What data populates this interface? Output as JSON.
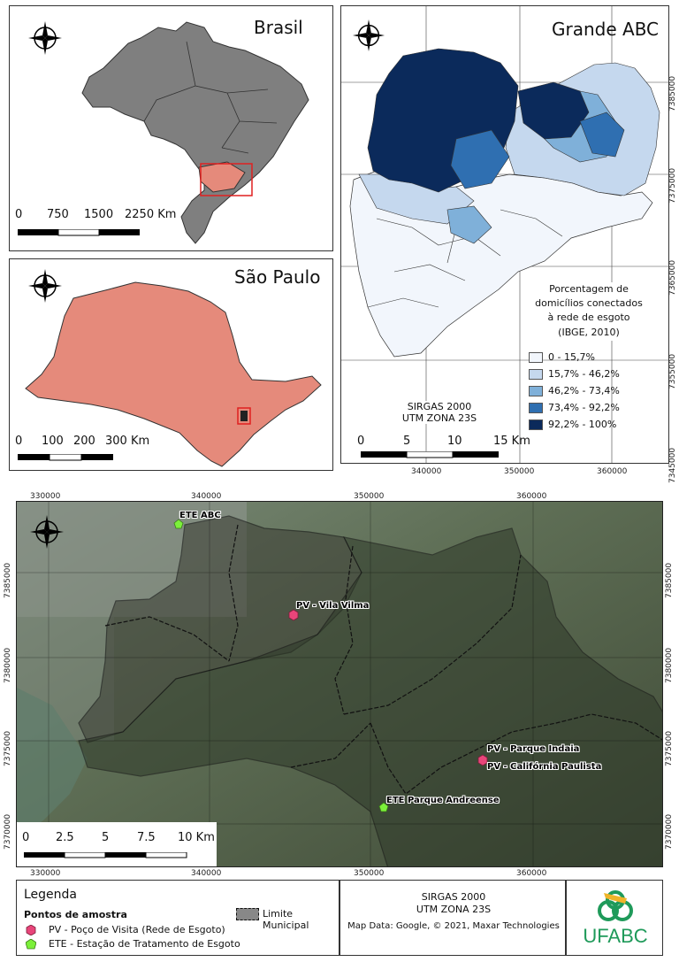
{
  "brasil_map": {
    "title": "Brasil",
    "scale_labels": [
      "0",
      "750",
      "1500",
      "2250 Km"
    ]
  },
  "sp_map": {
    "title": "São Paulo",
    "scale_labels": [
      "0",
      "100",
      "200",
      "300 Km"
    ]
  },
  "abc_map": {
    "title": "Grande ABC",
    "legend_title_lines": [
      "Porcentagem de",
      "domicílios conectados",
      "à rede de esgoto",
      "(IBGE, 2010)"
    ],
    "legend_classes": [
      {
        "label": "0 - 15,7%",
        "color": "#f2f6fc"
      },
      {
        "label": "15,7% - 46,2%",
        "color": "#c5d8ee"
      },
      {
        "label": "46,2% - 73,4%",
        "color": "#7fb0d9"
      },
      {
        "label": "73,4% - 92,2%",
        "color": "#2f6fb1"
      },
      {
        "label": "92,2% - 100%",
        "color": "#0b2a5b"
      }
    ],
    "crs_lines": [
      "SIRGAS 2000",
      "UTM ZONA 23S"
    ],
    "scale_labels": [
      "0",
      "5",
      "10",
      "15 Km"
    ],
    "x_ticks": [
      "340000",
      "350000",
      "360000"
    ],
    "y_ticks": [
      "7385000",
      "7375000",
      "7365000",
      "7355000",
      "7345000"
    ]
  },
  "sat_map": {
    "x_ticks_top": [
      "330000",
      "340000",
      "350000",
      "360000"
    ],
    "x_ticks_bottom": [
      "330000",
      "340000",
      "350000",
      "360000"
    ],
    "y_ticks_left": [
      "7385000",
      "7380000",
      "7375000",
      "7370000"
    ],
    "y_ticks_right": [
      "7385000",
      "7380000",
      "7375000",
      "7370000"
    ],
    "scale_labels": [
      "0",
      "2.5",
      "5",
      "7.5",
      "10 Km"
    ],
    "points": {
      "ete_abc": "ETE ABC",
      "pv_vila_vilma": "PV - Vila Vilma",
      "pv_parque_indaia": "PV - Parque Indaia",
      "pv_california": "PV - Califórnia Paulista",
      "ete_parque_andreense": "ETE Parque Andreense"
    }
  },
  "footer": {
    "legend_title": "Legenda",
    "legend_subtitle": "Pontos de amostra",
    "pv_label": "PV - Poço de Visita (Rede de Esgoto)",
    "ete_label": "ETE - Estação de Tratamento de Esgoto",
    "limite_label": "Limite Municipal",
    "crs_lines": [
      "SIRGAS 2000",
      "UTM ZONA 23S"
    ],
    "attribution": "Map Data: Google, © 2021, Maxar Technologies",
    "logo_text": "UFABC",
    "colors": {
      "pv": "#e8457a",
      "ete": "#7cf03a",
      "logo_green": "#1f9a5a",
      "logo_yellow": "#f0b429"
    }
  }
}
